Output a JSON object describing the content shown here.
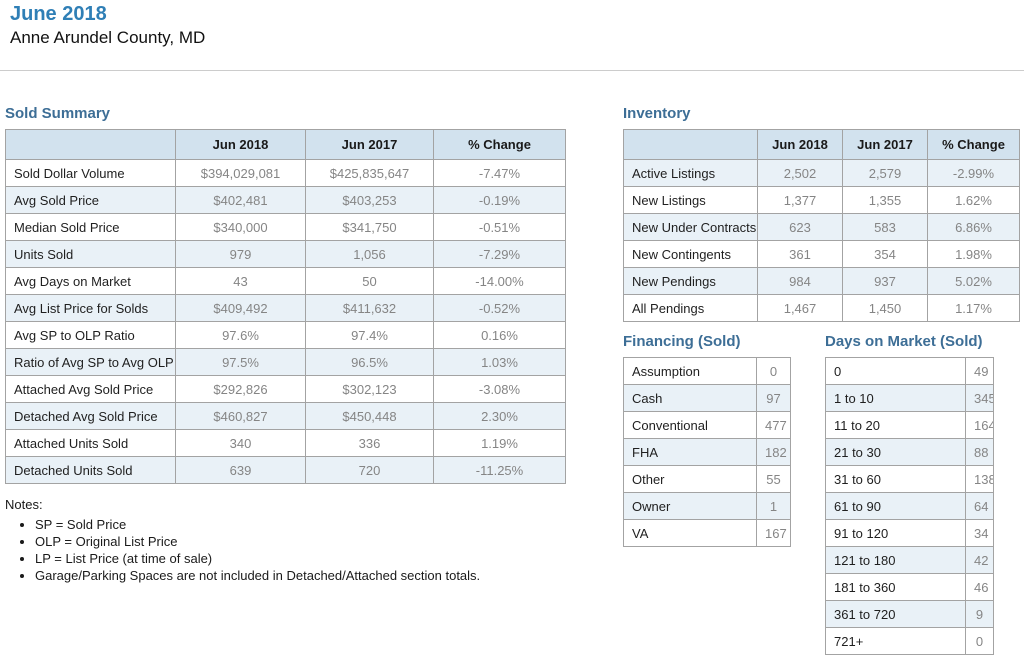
{
  "header": {
    "title": "June 2018",
    "subtitle": "Anne Arundel County, MD"
  },
  "colors": {
    "title_blue": "#2f7fb6",
    "section_heading_blue": "#3d6e96",
    "table_header_bg": "#d2e2ee",
    "alt_row_bg": "#e9f1f7",
    "table_border": "#a3a3a3",
    "value_text": "#858585"
  },
  "sold_summary": {
    "title": "Sold Summary",
    "columns": [
      "",
      "Jun 2018",
      "Jun 2017",
      "% Change"
    ],
    "rows": [
      {
        "label": "Sold Dollar Volume",
        "jun2018": "$394,029,081",
        "jun2017": "$425,835,647",
        "change": "-7.47%"
      },
      {
        "label": "Avg Sold Price",
        "jun2018": "$402,481",
        "jun2017": "$403,253",
        "change": "-0.19%"
      },
      {
        "label": "Median Sold Price",
        "jun2018": "$340,000",
        "jun2017": "$341,750",
        "change": "-0.51%"
      },
      {
        "label": "Units Sold",
        "jun2018": "979",
        "jun2017": "1,056",
        "change": "-7.29%"
      },
      {
        "label": "Avg Days on Market",
        "jun2018": "43",
        "jun2017": "50",
        "change": "-14.00%"
      },
      {
        "label": "Avg List Price for Solds",
        "jun2018": "$409,492",
        "jun2017": "$411,632",
        "change": "-0.52%"
      },
      {
        "label": "Avg SP to OLP Ratio",
        "jun2018": "97.6%",
        "jun2017": "97.4%",
        "change": "0.16%"
      },
      {
        "label": "Ratio of Avg SP to Avg OLP",
        "jun2018": "97.5%",
        "jun2017": "96.5%",
        "change": "1.03%"
      },
      {
        "label": "Attached Avg Sold Price",
        "jun2018": "$292,826",
        "jun2017": "$302,123",
        "change": "-3.08%"
      },
      {
        "label": "Detached Avg Sold Price",
        "jun2018": "$460,827",
        "jun2017": "$450,448",
        "change": "2.30%"
      },
      {
        "label": "Attached Units Sold",
        "jun2018": "340",
        "jun2017": "336",
        "change": "1.19%"
      },
      {
        "label": "Detached Units Sold",
        "jun2018": "639",
        "jun2017": "720",
        "change": "-11.25%"
      }
    ]
  },
  "notes": {
    "title": "Notes:",
    "items": [
      "SP = Sold Price",
      "OLP = Original List Price",
      "LP = List Price (at time of sale)",
      "Garage/Parking Spaces are not included in Detached/Attached section totals."
    ]
  },
  "inventory": {
    "title": "Inventory",
    "columns": [
      "",
      "Jun 2018",
      "Jun 2017",
      "% Change"
    ],
    "rows": [
      {
        "label": "Active Listings",
        "jun2018": "2,502",
        "jun2017": "2,579",
        "change": "-2.99%"
      },
      {
        "label": "New Listings",
        "jun2018": "1,377",
        "jun2017": "1,355",
        "change": "1.62%"
      },
      {
        "label": "New Under Contracts",
        "jun2018": "623",
        "jun2017": "583",
        "change": "6.86%"
      },
      {
        "label": "New Contingents",
        "jun2018": "361",
        "jun2017": "354",
        "change": "1.98%"
      },
      {
        "label": "New Pendings",
        "jun2018": "984",
        "jun2017": "937",
        "change": "5.02%"
      },
      {
        "label": "All Pendings",
        "jun2018": "1,467",
        "jun2017": "1,450",
        "change": "1.17%"
      }
    ]
  },
  "financing": {
    "title": "Financing (Sold)",
    "rows": [
      {
        "label": "Assumption",
        "value": "0"
      },
      {
        "label": "Cash",
        "value": "97"
      },
      {
        "label": "Conventional",
        "value": "477"
      },
      {
        "label": "FHA",
        "value": "182"
      },
      {
        "label": "Other",
        "value": "55"
      },
      {
        "label": "Owner",
        "value": "1"
      },
      {
        "label": "VA",
        "value": "167"
      }
    ]
  },
  "days_on_market": {
    "title": "Days on Market (Sold)",
    "rows": [
      {
        "label": "0",
        "value": "49"
      },
      {
        "label": "1 to 10",
        "value": "345"
      },
      {
        "label": "11 to 20",
        "value": "164"
      },
      {
        "label": "21 to 30",
        "value": "88"
      },
      {
        "label": "31 to 60",
        "value": "138"
      },
      {
        "label": "61 to 90",
        "value": "64"
      },
      {
        "label": "91 to 120",
        "value": "34"
      },
      {
        "label": "121 to 180",
        "value": "42"
      },
      {
        "label": "181 to 360",
        "value": "46"
      },
      {
        "label": "361 to 720",
        "value": "9"
      },
      {
        "label": "721+",
        "value": "0"
      }
    ]
  }
}
